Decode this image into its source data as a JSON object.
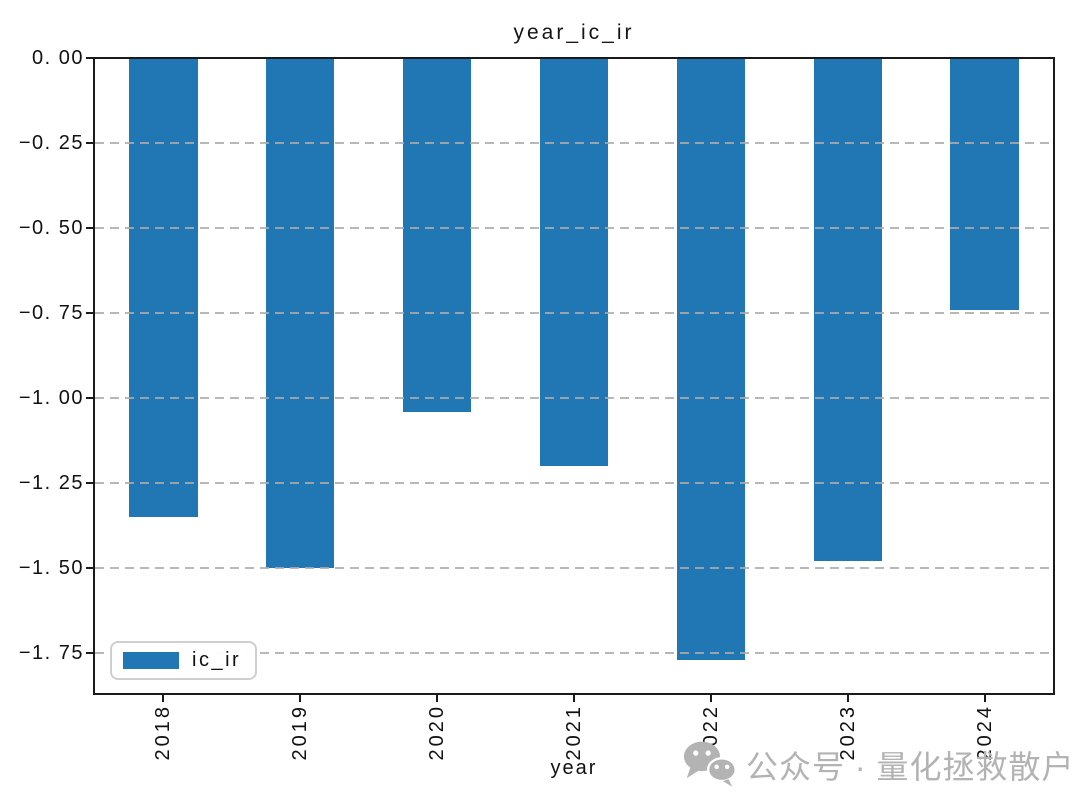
{
  "title": "year_ic_ir",
  "watermark": {
    "icon": "wechat-icon",
    "text": "公众号 · 量化拯救散户",
    "color": "#b3b3b3"
  },
  "chart_data": {
    "type": "bar",
    "title": "year_ic_ir",
    "xlabel": "year",
    "ylabel": "",
    "categories": [
      "2018",
      "2019",
      "2020",
      "2021",
      "2022",
      "2023",
      "2024"
    ],
    "series": [
      {
        "name": "ic_ir",
        "values": [
          -1.35,
          -1.5,
          -1.04,
          -1.2,
          -1.77,
          -1.48,
          -0.74
        ]
      }
    ],
    "bar_color": "#2176b4",
    "ylim": [
      -1.87,
      0
    ],
    "yticks": {
      "values": [
        0,
        -0.25,
        -0.5,
        -0.75,
        -1.0,
        -1.25,
        -1.5,
        -1.75
      ],
      "labels": [
        "0. 00",
        "−0. 25",
        "−0. 50",
        "−0. 75",
        "−1. 00",
        "−1. 25",
        "−1. 50",
        "−1. 75"
      ]
    },
    "grid": "horizontal dashed, drawn above bars",
    "legend": {
      "label": "ic_ir",
      "position": "lower left"
    },
    "xtick_rotation": 90,
    "bar_width_fraction": 0.5
  }
}
